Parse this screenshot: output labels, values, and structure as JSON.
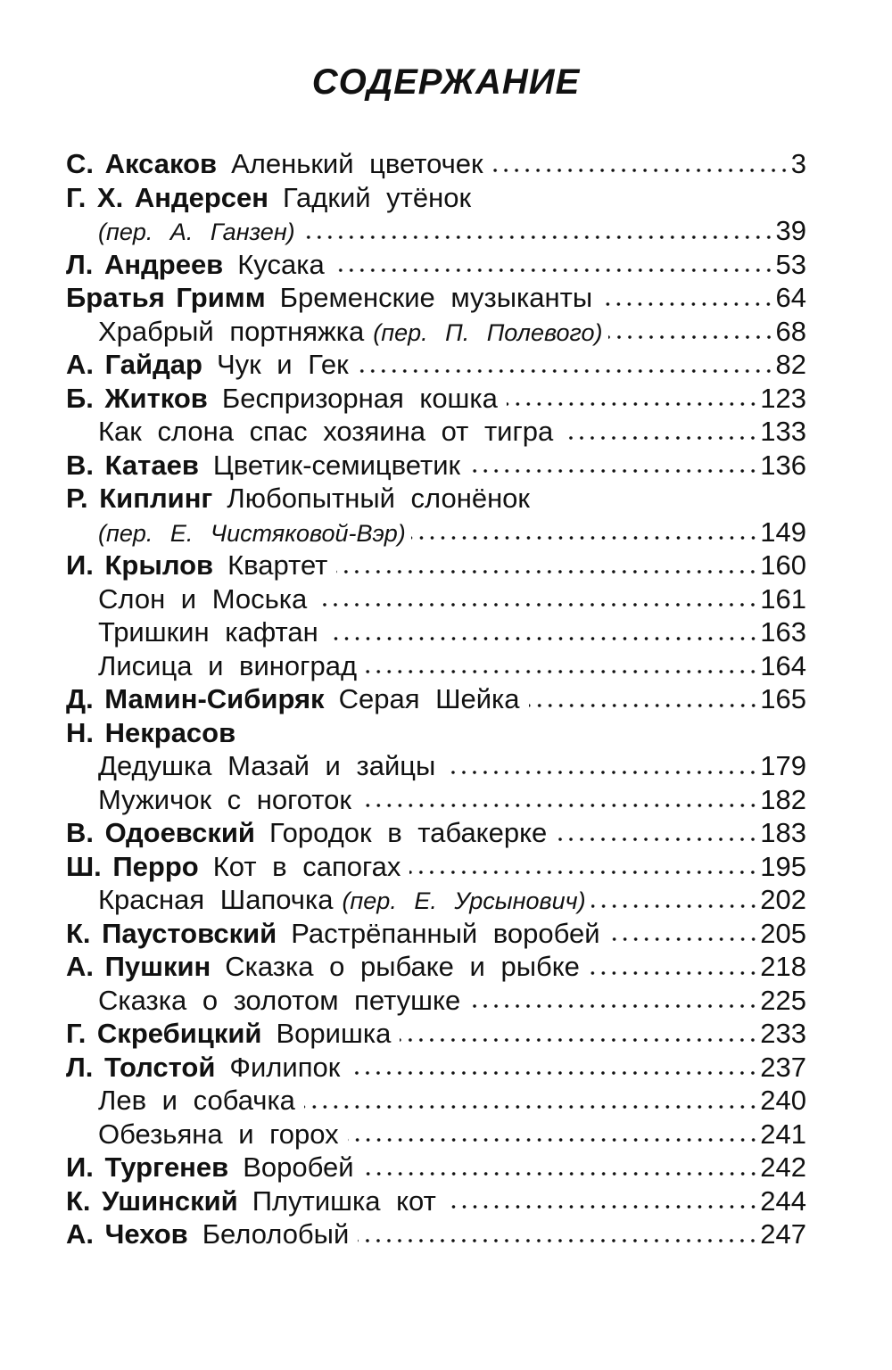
{
  "heading": "СОДЕРЖАНИЕ",
  "lines": [
    {
      "author": "С. Аксаков",
      "title": "Аленький цветочек",
      "page": "3"
    },
    {
      "author": "Г. Х. Андерсен",
      "title": "Гадкий утёнок"
    },
    {
      "note": "(пер. А. Ганзен)",
      "page": "39",
      "indent": true
    },
    {
      "author": "Л. Андреев",
      "title": "Кусака",
      "page": "53"
    },
    {
      "author": "Братья Гримм",
      "title": "Бременские музыканты",
      "page": "64"
    },
    {
      "title": "Храбрый портняжка",
      "note": "(пер. П. Полевого)",
      "page": "68",
      "indent": true
    },
    {
      "author": "А. Гайдар",
      "title": "Чук и Гек",
      "page": "82"
    },
    {
      "author": "Б. Житков",
      "title": "Беспризорная кошка",
      "page": "123"
    },
    {
      "title": "Как слона спас хозяина от тигра",
      "page": "133",
      "indent": true
    },
    {
      "author": "В. Катаев",
      "title": "Цветик-семицветик",
      "page": "136"
    },
    {
      "author": "Р. Киплинг",
      "title": "Любопытный слонёнок"
    },
    {
      "note": "(пер. Е. Чистяковой-Вэр)",
      "page": "149",
      "indent": true
    },
    {
      "author": "И. Крылов",
      "title": "Квартет",
      "page": "160"
    },
    {
      "title": "Слон и Моська",
      "page": "161",
      "indent": true
    },
    {
      "title": "Тришкин кафтан",
      "page": "163",
      "indent": true
    },
    {
      "title": "Лисица и виноград",
      "page": "164",
      "indent": true
    },
    {
      "author": "Д. Мамин-Сибиряк",
      "title": "Серая Шейка",
      "page": "165"
    },
    {
      "author": "Н. Некрасов"
    },
    {
      "title": "Дедушка Мазай и зайцы",
      "page": "179",
      "indent": true
    },
    {
      "title": "Мужичок с ноготок",
      "page": "182",
      "indent": true
    },
    {
      "author": "В. Одоевский",
      "title": "Городок в табакерке",
      "page": "183"
    },
    {
      "author": "Ш. Перро",
      "title": "Кот в сапогах",
      "page": "195"
    },
    {
      "title": "Красная Шапочка",
      "note": "(пер. Е. Урсынович)",
      "page": "202",
      "indent": true
    },
    {
      "author": "К. Паустовский",
      "title": "Растрёпанный воробей",
      "page": "205"
    },
    {
      "author": "А. Пушкин",
      "title": "Сказка о рыбаке и рыбке",
      "page": "218"
    },
    {
      "title": "Сказка о золотом петушке",
      "page": "225",
      "indent": true
    },
    {
      "author": "Г. Скребицкий",
      "title": "Воришка",
      "page": "233"
    },
    {
      "author": "Л. Толстой",
      "title": "Филипок",
      "page": "237"
    },
    {
      "title": "Лев и собачка",
      "page": "240",
      "indent": true
    },
    {
      "title": "Обезьяна и горох",
      "page": "241",
      "indent": true
    },
    {
      "author": "И. Тургенев",
      "title": "Воробей",
      "page": "242"
    },
    {
      "author": "К. Ушинский",
      "title": "Плутишка кот",
      "page": "244"
    },
    {
      "author": "А. Чехов",
      "title": "Белолобый",
      "page": "247"
    }
  ]
}
